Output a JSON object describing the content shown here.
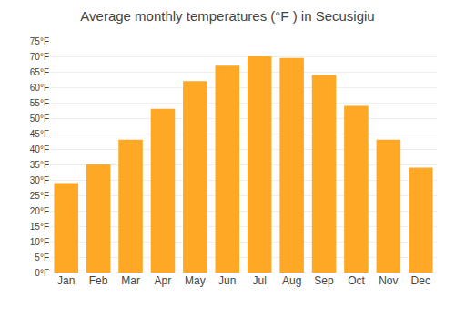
{
  "chart_data": {
    "type": "bar",
    "title": "Average monthly temperatures (°F ) in Secusigiu",
    "categories": [
      "Jan",
      "Feb",
      "Mar",
      "Apr",
      "May",
      "Jun",
      "Jul",
      "Aug",
      "Sep",
      "Oct",
      "Nov",
      "Dec"
    ],
    "values": [
      29,
      35,
      43,
      53,
      62,
      67,
      70,
      69.5,
      64,
      54,
      43,
      34
    ],
    "color": "#FFA826",
    "ylim": [
      0,
      75
    ],
    "yticks": [
      {
        "value": 0,
        "label": "0°F"
      },
      {
        "value": 5,
        "label": "5°F"
      },
      {
        "value": 10,
        "label": "10°F"
      },
      {
        "value": 15,
        "label": "15°F"
      },
      {
        "value": 20,
        "label": "20°F"
      },
      {
        "value": 25,
        "label": "25°F"
      },
      {
        "value": 30,
        "label": "30°F"
      },
      {
        "value": 35,
        "label": "35°F"
      },
      {
        "value": 40,
        "label": "40°F"
      },
      {
        "value": 45,
        "label": "45°F"
      },
      {
        "value": 50,
        "label": "50°F"
      },
      {
        "value": 55,
        "label": "55°F"
      },
      {
        "value": 60,
        "label": "60°F"
      },
      {
        "value": 65,
        "label": "65°F"
      },
      {
        "value": 70,
        "label": "70°F"
      },
      {
        "value": 75,
        "label": "75°F"
      }
    ],
    "grid": true
  }
}
